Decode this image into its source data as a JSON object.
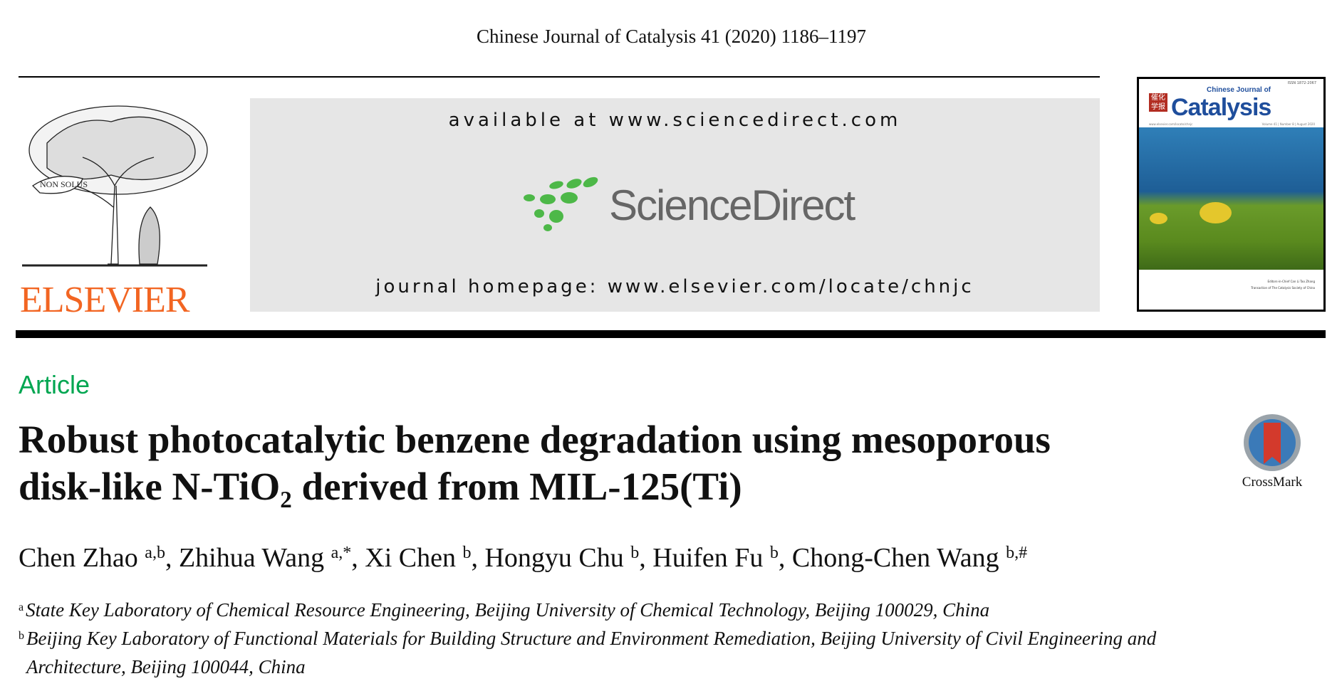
{
  "header": {
    "citation": "Chinese Journal of Catalysis 41 (2020) 1186–1197"
  },
  "publisher": {
    "logo_text": "ELSEVIER",
    "motto": "NON SOLUS",
    "color": "#f26522"
  },
  "banner": {
    "available": "available at www.sciencedirect.com",
    "brand": "ScienceDirect",
    "homepage": "journal homepage: www.elsevier.com/locate/chnjc"
  },
  "cover": {
    "chinese": "催化学报",
    "journal_line1": "Chinese Journal of",
    "journal_line2": "Catalysis",
    "issn": "ISSN 1872-2067",
    "url": "www.elsevier.com/locate/chnjc",
    "issue": "Volume 41 | Number 8 | August 2020",
    "editors": "Editors-in-Chief  Can Li  Tao Zhang",
    "transaction": "Transaction of The Catalysis Society of China"
  },
  "article": {
    "type": "Article",
    "title_line1": "Robust photocatalytic benzene degradation using mesoporous",
    "title_line2": "disk-like N-TiO₂ derived from MIL-125(Ti)",
    "crossmark": "CrossMark",
    "authors": [
      {
        "name": "Chen Zhao",
        "sup": "a,b"
      },
      {
        "name": "Zhihua Wang",
        "sup": "a,*"
      },
      {
        "name": "Xi Chen",
        "sup": "b"
      },
      {
        "name": "Hongyu Chu",
        "sup": "b"
      },
      {
        "name": "Huifen Fu",
        "sup": "b"
      },
      {
        "name": "Chong-Chen Wang",
        "sup": "b,#"
      }
    ],
    "affiliations": [
      {
        "mark": "a",
        "text": "State Key Laboratory of Chemical Resource Engineering, Beijing University of Chemical Technology, Beijing 100029, China"
      },
      {
        "mark": "b",
        "text": "Beijing Key Laboratory of Functional Materials for Building Structure and Environment Remediation, Beijing University of Civil Engineering and",
        "text2": "Architecture, Beijing 100044, China"
      }
    ]
  },
  "colors": {
    "article_label": "#00a651",
    "sciencedirect_green": "#4db848",
    "banner_bg": "#e6e6e6"
  }
}
